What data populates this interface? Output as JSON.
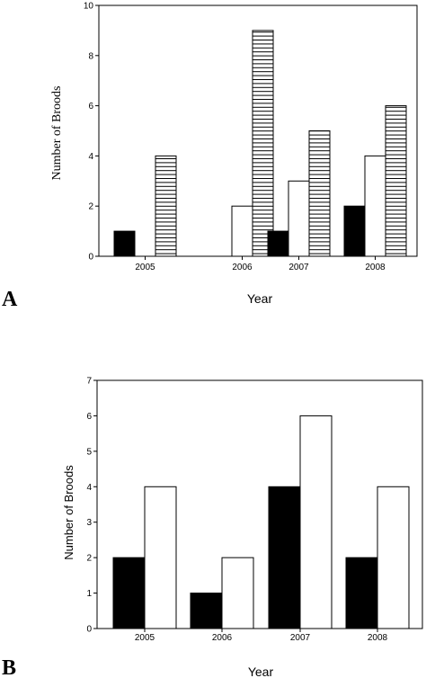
{
  "chart_data": [
    {
      "panel": "A",
      "type": "bar",
      "categories": [
        "2005",
        "2006",
        "2007",
        "2008"
      ],
      "series": [
        {
          "fill": "#000000",
          "values": [
            1,
            0,
            1,
            2
          ]
        },
        {
          "fill": "#ffffff",
          "values": [
            0,
            2,
            3,
            4
          ]
        },
        {
          "fill": "hatch-horizontal",
          "values": [
            4,
            9,
            5,
            6
          ]
        }
      ],
      "xlabel": "Year",
      "ylabel": "Number of Broods",
      "ylim": [
        0,
        10
      ],
      "yticks": [
        0,
        2,
        4,
        6,
        8,
        10
      ],
      "grid": false
    },
    {
      "panel": "B",
      "type": "bar",
      "categories": [
        "2005",
        "2006",
        "2007",
        "2008"
      ],
      "series": [
        {
          "fill": "#000000",
          "values": [
            2,
            1,
            4,
            2
          ]
        },
        {
          "fill": "#ffffff",
          "values": [
            4,
            2,
            6,
            4
          ]
        }
      ],
      "xlabel": "Year",
      "ylabel": "Number of Broods",
      "ylim": [
        0,
        7
      ],
      "yticks": [
        0,
        1,
        2,
        3,
        4,
        5,
        6,
        7
      ],
      "grid": false
    }
  ]
}
